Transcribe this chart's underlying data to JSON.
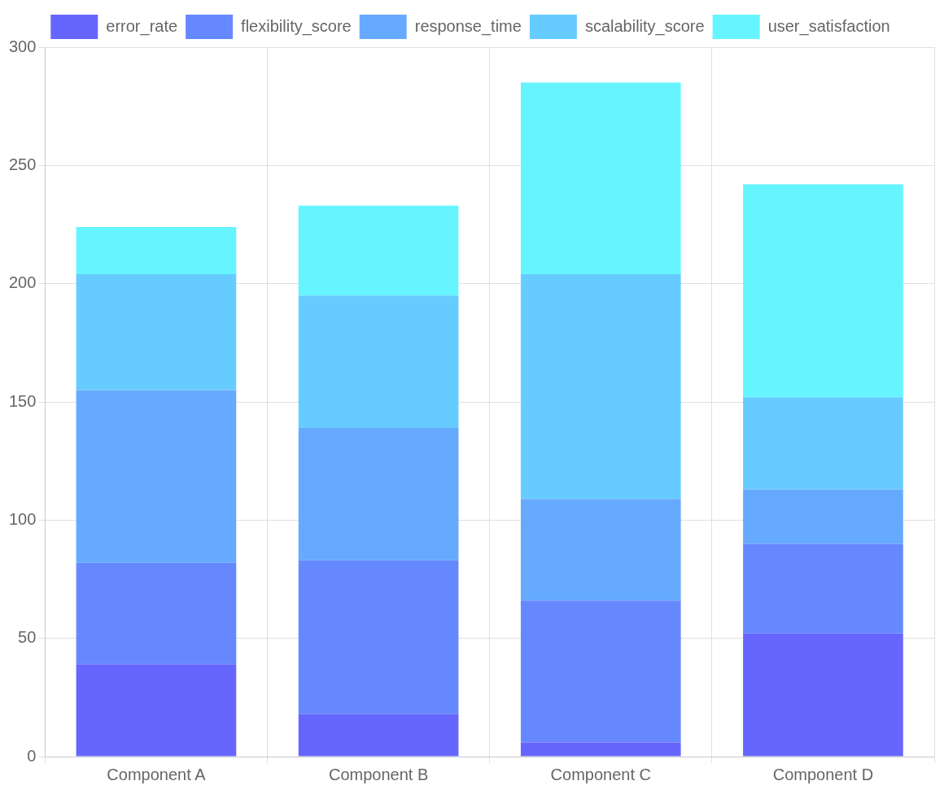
{
  "chart_data": {
    "type": "bar",
    "stacked": true,
    "categories": [
      "Component A",
      "Component B",
      "Component C",
      "Component D"
    ],
    "series": [
      {
        "name": "error_rate",
        "color": "#6666ff",
        "values": [
          39,
          18,
          6,
          52
        ]
      },
      {
        "name": "flexibility_score",
        "color": "#6688ff",
        "values": [
          43,
          65,
          60,
          38
        ]
      },
      {
        "name": "response_time",
        "color": "#66aaff",
        "values": [
          73,
          56,
          43,
          23
        ]
      },
      {
        "name": "scalability_score",
        "color": "#66ccff",
        "values": [
          49,
          56,
          95,
          39
        ]
      },
      {
        "name": "user_satisfaction",
        "color": "#66f5ff",
        "values": [
          20,
          38,
          81,
          90
        ]
      }
    ],
    "ylim": [
      0,
      300
    ],
    "yticks": [
      0,
      50,
      100,
      150,
      200,
      250,
      300
    ],
    "grid": true,
    "legend": "top"
  }
}
